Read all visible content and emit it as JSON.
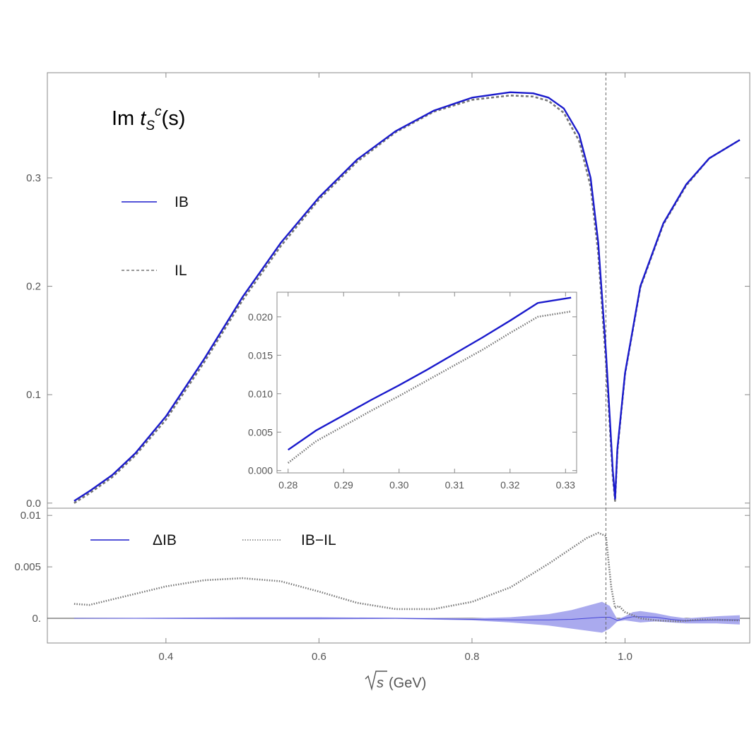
{
  "chart_data": [
    {
      "id": "main",
      "type": "line",
      "title": {
        "prefix": "Im ",
        "t": "t",
        "sub": "S",
        "sup": "c",
        "suffix": "(s)"
      },
      "xlim": [
        0.245,
        1.163
      ],
      "ylim": [
        -0.0047,
        0.397
      ],
      "yticks": [
        0.0,
        0.1,
        0.2,
        0.3
      ],
      "ytick_labels": [
        "0.0",
        "0.1",
        "0.2",
        "0.3"
      ],
      "xticks": [
        0.4,
        0.6,
        0.8,
        1.0
      ],
      "vline_x": 0.975,
      "grid": false,
      "legend": [
        {
          "label": "IB",
          "style": "solid",
          "color": "#1a1acc"
        },
        {
          "label": "IL",
          "style": "dashed",
          "color": "#777777"
        }
      ],
      "series": [
        {
          "name": "IB",
          "color": "#1a1acc",
          "style": "solid",
          "x": [
            0.28,
            0.3,
            0.33,
            0.36,
            0.4,
            0.45,
            0.5,
            0.55,
            0.6,
            0.65,
            0.7,
            0.75,
            0.8,
            0.85,
            0.88,
            0.9,
            0.92,
            0.94,
            0.955,
            0.965,
            0.975,
            0.98,
            0.984,
            0.987,
            0.99,
            1.0,
            1.02,
            1.05,
            1.08,
            1.11,
            1.15
          ],
          "y": [
            0.002,
            0.011,
            0.026,
            0.046,
            0.08,
            0.133,
            0.19,
            0.24,
            0.282,
            0.317,
            0.343,
            0.362,
            0.374,
            0.379,
            0.378,
            0.374,
            0.364,
            0.34,
            0.3,
            0.24,
            0.14,
            0.08,
            0.03,
            0.004,
            0.05,
            0.12,
            0.2,
            0.258,
            0.294,
            0.318,
            0.335
          ]
        },
        {
          "name": "IL",
          "color": "#777777",
          "style": "dashed",
          "x": [
            0.28,
            0.3,
            0.33,
            0.36,
            0.4,
            0.45,
            0.5,
            0.55,
            0.6,
            0.65,
            0.7,
            0.75,
            0.8,
            0.85,
            0.88,
            0.9,
            0.92,
            0.94,
            0.955,
            0.965,
            0.975,
            0.98,
            0.984,
            0.987,
            0.99,
            1.0,
            1.02,
            1.05,
            1.08,
            1.11,
            1.15
          ],
          "y": [
            0.0,
            0.009,
            0.024,
            0.044,
            0.077,
            0.13,
            0.187,
            0.237,
            0.28,
            0.315,
            0.342,
            0.361,
            0.372,
            0.376,
            0.375,
            0.371,
            0.36,
            0.334,
            0.292,
            0.23,
            0.13,
            0.072,
            0.024,
            0.002,
            0.048,
            0.119,
            0.199,
            0.257,
            0.293,
            0.318,
            0.335
          ]
        }
      ]
    },
    {
      "id": "inset",
      "type": "line",
      "xlim": [
        0.278,
        0.332
      ],
      "ylim": [
        -0.0003,
        0.0232
      ],
      "xticks": [
        0.28,
        0.29,
        0.3,
        0.31,
        0.32,
        0.33
      ],
      "xtick_labels": [
        "0.28",
        "0.29",
        "0.30",
        "0.31",
        "0.32",
        "0.33"
      ],
      "yticks": [
        0.0,
        0.005,
        0.01,
        0.015,
        0.02
      ],
      "ytick_labels": [
        "0.000",
        "0.005",
        "0.010",
        "0.015",
        "0.020"
      ],
      "series": [
        {
          "name": "IB",
          "color": "#1a1acc",
          "style": "solid",
          "x": [
            0.28,
            0.285,
            0.29,
            0.295,
            0.3,
            0.305,
            0.31,
            0.315,
            0.32,
            0.325,
            0.331
          ],
          "y": [
            0.0027,
            0.0052,
            0.0072,
            0.0092,
            0.0111,
            0.0131,
            0.0152,
            0.0173,
            0.0195,
            0.0218,
            0.0225
          ]
        },
        {
          "name": "IL",
          "color": "#777777",
          "style": "dotted",
          "x": [
            0.28,
            0.285,
            0.29,
            0.295,
            0.3,
            0.305,
            0.31,
            0.315,
            0.32,
            0.325,
            0.331
          ],
          "y": [
            0.001,
            0.0038,
            0.0058,
            0.0078,
            0.0097,
            0.0117,
            0.0137,
            0.0157,
            0.0179,
            0.02,
            0.0207
          ]
        }
      ]
    },
    {
      "id": "residual",
      "type": "area",
      "xlim": [
        0.245,
        1.163
      ],
      "ylim": [
        -0.0024,
        0.0107
      ],
      "yticks": [
        0.0,
        0.005,
        0.01
      ],
      "ytick_labels": [
        "0.",
        "0.005",
        "0.01"
      ],
      "xticks": [
        0.4,
        0.6,
        0.8,
        1.0
      ],
      "xtick_labels": [
        "0.4",
        "0.6",
        "0.8",
        "1.0"
      ],
      "xlabel": {
        "root": "s",
        "unit": "(GeV)"
      },
      "vline_x": 0.975,
      "legend": [
        {
          "label": "ΔIB",
          "style": "solid",
          "color": "#1a1acc"
        },
        {
          "label": "IB−IL",
          "style": "dotted",
          "color": "#777777"
        }
      ],
      "series": [
        {
          "name": "ΔIB",
          "type": "band",
          "color": "#1a1acc",
          "fill": "#aaaaee",
          "x": [
            0.28,
            0.4,
            0.5,
            0.6,
            0.7,
            0.8,
            0.85,
            0.9,
            0.93,
            0.95,
            0.97,
            0.98,
            0.99,
            1.0,
            1.01,
            1.02,
            1.04,
            1.06,
            1.08,
            1.1,
            1.12,
            1.15
          ],
          "upper": [
            0.0,
            5e-05,
            0.0001,
            0.0001,
            5e-05,
            0.0,
            0.0001,
            0.0004,
            0.0008,
            0.0012,
            0.0016,
            0.0012,
            -0.0001,
            0.0002,
            0.0006,
            0.0007,
            0.0005,
            0.0002,
            0.0,
            0.0001,
            0.0002,
            0.0003
          ],
          "lower": [
            0.0,
            -5e-05,
            -0.0001,
            -0.0001,
            -5e-05,
            -0.0002,
            -0.0004,
            -0.0007,
            -0.001,
            -0.0012,
            -0.0014,
            -0.001,
            -0.0003,
            -0.0002,
            -0.0003,
            -0.0004,
            -0.0003,
            -0.0004,
            -0.0005,
            -0.0005,
            -0.0005,
            -0.0006
          ]
        },
        {
          "name": "IB−IL",
          "color": "#777777",
          "style": "dotted",
          "x": [
            0.28,
            0.3,
            0.35,
            0.4,
            0.45,
            0.5,
            0.55,
            0.6,
            0.65,
            0.7,
            0.75,
            0.8,
            0.85,
            0.9,
            0.93,
            0.95,
            0.965,
            0.975,
            0.982,
            0.987,
            0.992,
            1.0,
            1.02,
            1.04,
            1.07,
            1.1,
            1.15
          ],
          "y": [
            0.0014,
            0.0013,
            0.0022,
            0.0031,
            0.0037,
            0.0039,
            0.0036,
            0.0026,
            0.0015,
            0.0009,
            0.0009,
            0.0016,
            0.003,
            0.0053,
            0.0068,
            0.0078,
            0.0083,
            0.008,
            0.003,
            0.001,
            0.0012,
            0.0006,
            0.0,
            -0.0002,
            -0.0003,
            -0.0001,
            -0.0002
          ]
        }
      ]
    }
  ]
}
